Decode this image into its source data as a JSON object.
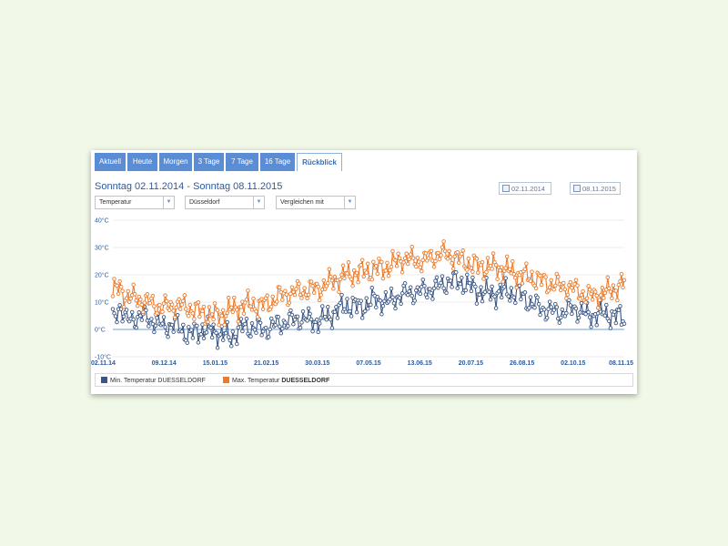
{
  "tabs": [
    {
      "label": "Aktuell",
      "active": false
    },
    {
      "label": "Heute",
      "active": false
    },
    {
      "label": "Morgen",
      "active": false
    },
    {
      "label": "3 Tage",
      "active": false
    },
    {
      "label": "7 Tage",
      "active": false
    },
    {
      "label": "16 Tage",
      "active": false
    },
    {
      "label": "Rückblick",
      "active": true
    }
  ],
  "header": {
    "range_start": "Sonntag 02.11.2014",
    "range_separator": "-",
    "range_end": "Sonntag 08.11.2015",
    "date_from": "02.11.2014",
    "date_to": "08.11.2015"
  },
  "filters": {
    "parameter": "Temperatur",
    "location": "Düsseldorf",
    "compare": "Vergleichen mit"
  },
  "colors": {
    "accent": "#5a8dd4",
    "min_series": "#3b5684",
    "max_series": "#ec7a2b",
    "zero_line": "#8db0dc"
  },
  "chart_data": {
    "type": "line",
    "y_ticks": [
      "40°C",
      "30°C",
      "20°C",
      "10°C",
      "0°C",
      "-10°C"
    ],
    "ylim": [
      -10,
      40
    ],
    "x_ticks": [
      "02.11.14",
      "09.12.14",
      "15.01.15",
      "21.02.15",
      "30.03.15",
      "07.05.15",
      "13.06.15",
      "20.07.15",
      "26.08.15",
      "02.10.15",
      "08.11.15"
    ],
    "x_days": 371,
    "grid": true,
    "legend_position": "bottom",
    "series": [
      {
        "name": "Min. Temperatur DUESSELDORF",
        "key": "min",
        "anchors": [
          [
            0,
            3
          ],
          [
            5,
            9
          ],
          [
            10,
            3
          ],
          [
            20,
            5
          ],
          [
            30,
            3
          ],
          [
            37,
            1
          ],
          [
            45,
            2
          ],
          [
            55,
            -2
          ],
          [
            65,
            0
          ],
          [
            75,
            -1
          ],
          [
            85,
            -3
          ],
          [
            95,
            1
          ],
          [
            111,
            0
          ],
          [
            120,
            2
          ],
          [
            135,
            4
          ],
          [
            150,
            3
          ],
          [
            160,
            6
          ],
          [
            170,
            9
          ],
          [
            180,
            8
          ],
          [
            190,
            11
          ],
          [
            200,
            10
          ],
          [
            210,
            13
          ],
          [
            225,
            14
          ],
          [
            238,
            16
          ],
          [
            245,
            18
          ],
          [
            255,
            17
          ],
          [
            265,
            14
          ],
          [
            275,
            13
          ],
          [
            285,
            14
          ],
          [
            295,
            13
          ],
          [
            305,
            9
          ],
          [
            315,
            7
          ],
          [
            325,
            6
          ],
          [
            334,
            8
          ],
          [
            345,
            5
          ],
          [
            355,
            6
          ],
          [
            364,
            5
          ],
          [
            371,
            4
          ]
        ]
      },
      {
        "name": "Max. Temperatur DUESSELDORF",
        "key": "max",
        "anchors": [
          [
            0,
            14
          ],
          [
            5,
            15
          ],
          [
            10,
            12
          ],
          [
            20,
            11
          ],
          [
            30,
            9
          ],
          [
            37,
            8
          ],
          [
            45,
            9
          ],
          [
            55,
            8
          ],
          [
            65,
            6
          ],
          [
            75,
            5
          ],
          [
            85,
            7
          ],
          [
            95,
            9
          ],
          [
            111,
            9
          ],
          [
            120,
            12
          ],
          [
            135,
            14
          ],
          [
            150,
            15
          ],
          [
            160,
            18
          ],
          [
            170,
            20
          ],
          [
            180,
            21
          ],
          [
            190,
            22
          ],
          [
            200,
            23
          ],
          [
            210,
            26
          ],
          [
            225,
            25
          ],
          [
            238,
            28
          ],
          [
            245,
            27
          ],
          [
            255,
            25
          ],
          [
            265,
            23
          ],
          [
            275,
            23
          ],
          [
            285,
            22
          ],
          [
            295,
            20
          ],
          [
            305,
            19
          ],
          [
            315,
            17
          ],
          [
            325,
            16
          ],
          [
            334,
            15
          ],
          [
            345,
            12
          ],
          [
            355,
            13
          ],
          [
            364,
            15
          ],
          [
            371,
            17
          ]
        ]
      }
    ]
  },
  "legend": {
    "min_label_prefix": "Min. Temperatur ",
    "min_label_station": "DUESSELDORF",
    "max_label_prefix": "Max. Temperatur ",
    "max_label_station": "DUESSELDORF"
  }
}
